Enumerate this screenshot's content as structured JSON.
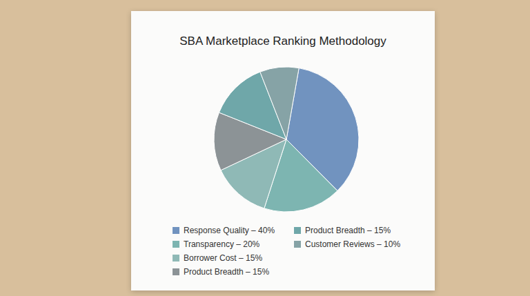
{
  "chart_data": {
    "type": "pie",
    "title": "SBA Marketplace Ranking Methodology",
    "categories": [
      "Response Quality – 40%",
      "Transparency – 20%",
      "Borrower Cost – 15%",
      "Product Breadth – 15%",
      "Product Breadth – 15%",
      "Customer Reviews – 10%"
    ],
    "values": [
      40,
      20,
      15,
      15,
      15,
      10
    ],
    "colors": [
      "#7193bf",
      "#7db5b1",
      "#8fb9b6",
      "#8c9396",
      "#6fa7a9",
      "#86a3a6"
    ],
    "legend": "bottom"
  }
}
